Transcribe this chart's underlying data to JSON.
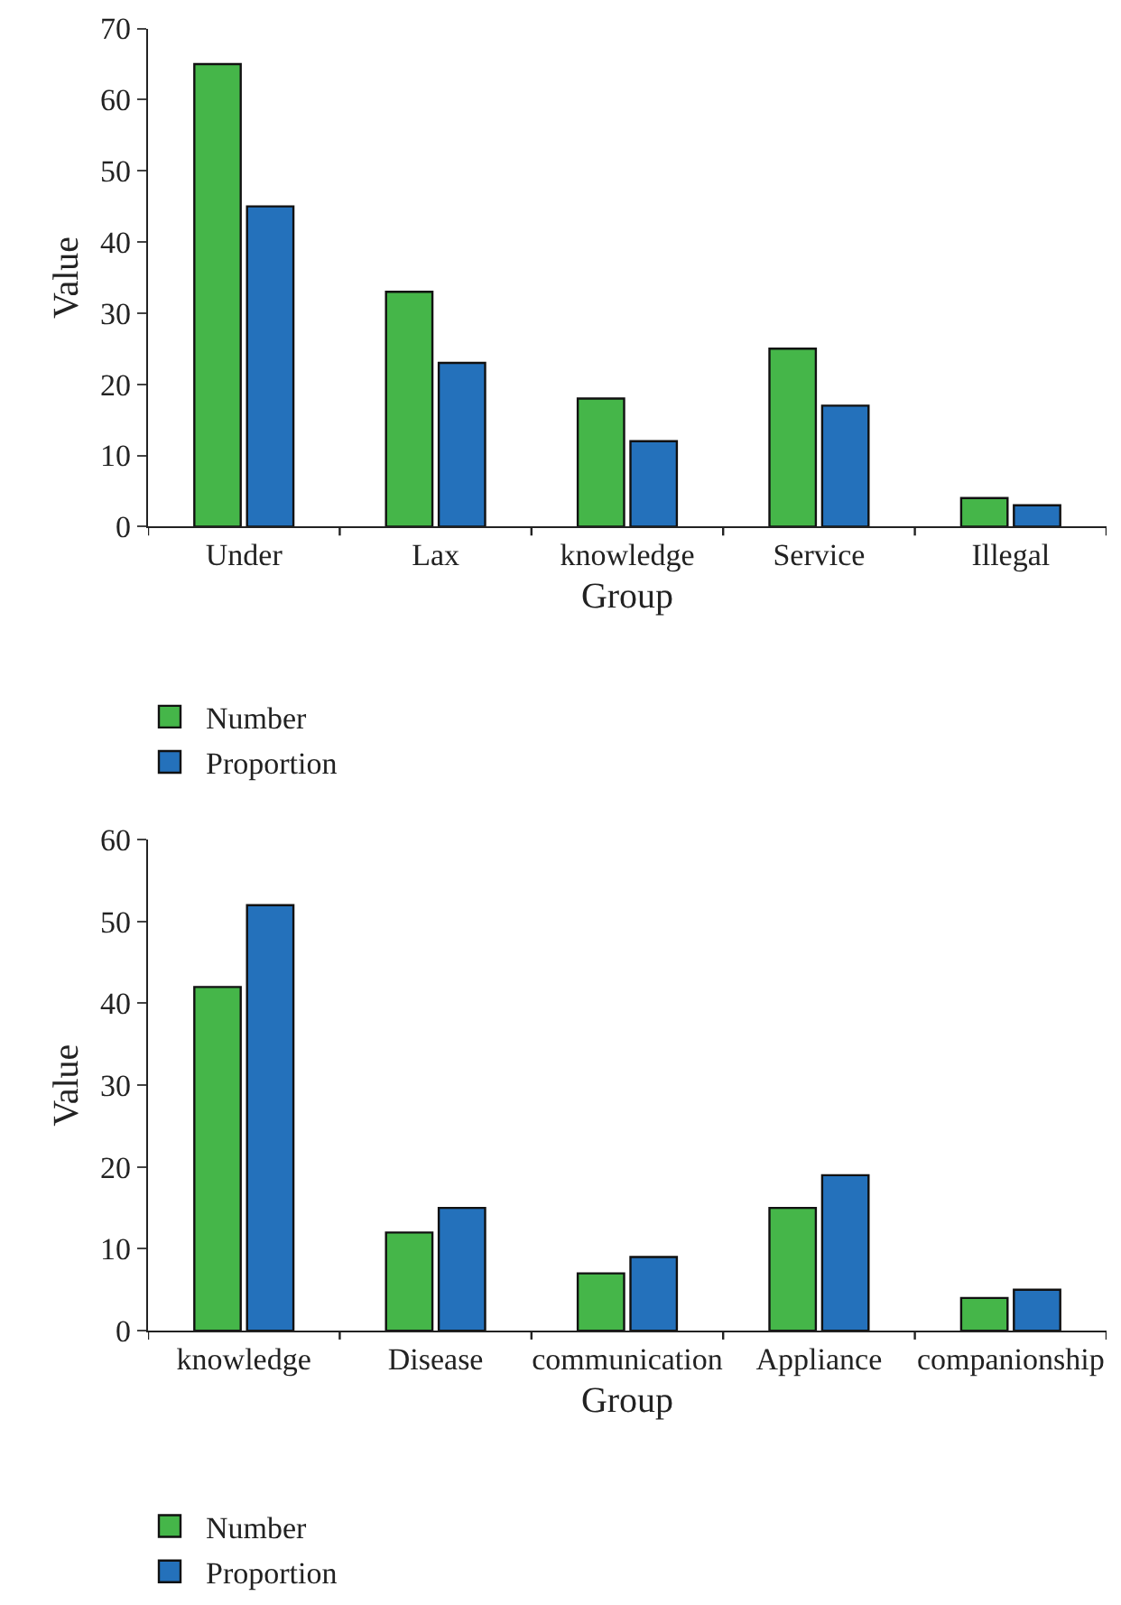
{
  "chart_data": [
    {
      "type": "bar",
      "xlabel": "Group",
      "ylabel": "Value",
      "categories": [
        "Under",
        "Lax",
        "knowledge",
        "Service",
        "Illegal"
      ],
      "series": [
        {
          "name": "Number",
          "color": "#45b649",
          "values": [
            65,
            33,
            18,
            25,
            4
          ]
        },
        {
          "name": "Proportion",
          "color": "#2471bb",
          "values": [
            45,
            23,
            12,
            17,
            3
          ]
        }
      ],
      "ylim": [
        0,
        70
      ],
      "yticks": [
        0,
        10,
        20,
        30,
        40,
        50,
        60,
        70
      ],
      "legend": "bottom left"
    },
    {
      "type": "bar",
      "xlabel": "Group",
      "ylabel": "Value",
      "categories": [
        "knowledge",
        "Disease",
        "communication",
        "Appliance",
        "companionship"
      ],
      "series": [
        {
          "name": "Number",
          "color": "#45b649",
          "values": [
            42,
            12,
            7,
            15,
            4
          ]
        },
        {
          "name": "Proportion",
          "color": "#2471bb",
          "values": [
            52,
            15,
            9,
            19,
            5
          ]
        }
      ],
      "ylim": [
        0,
        60
      ],
      "yticks": [
        0,
        10,
        20,
        30,
        40,
        50,
        60
      ],
      "legend": "bottom left"
    }
  ]
}
